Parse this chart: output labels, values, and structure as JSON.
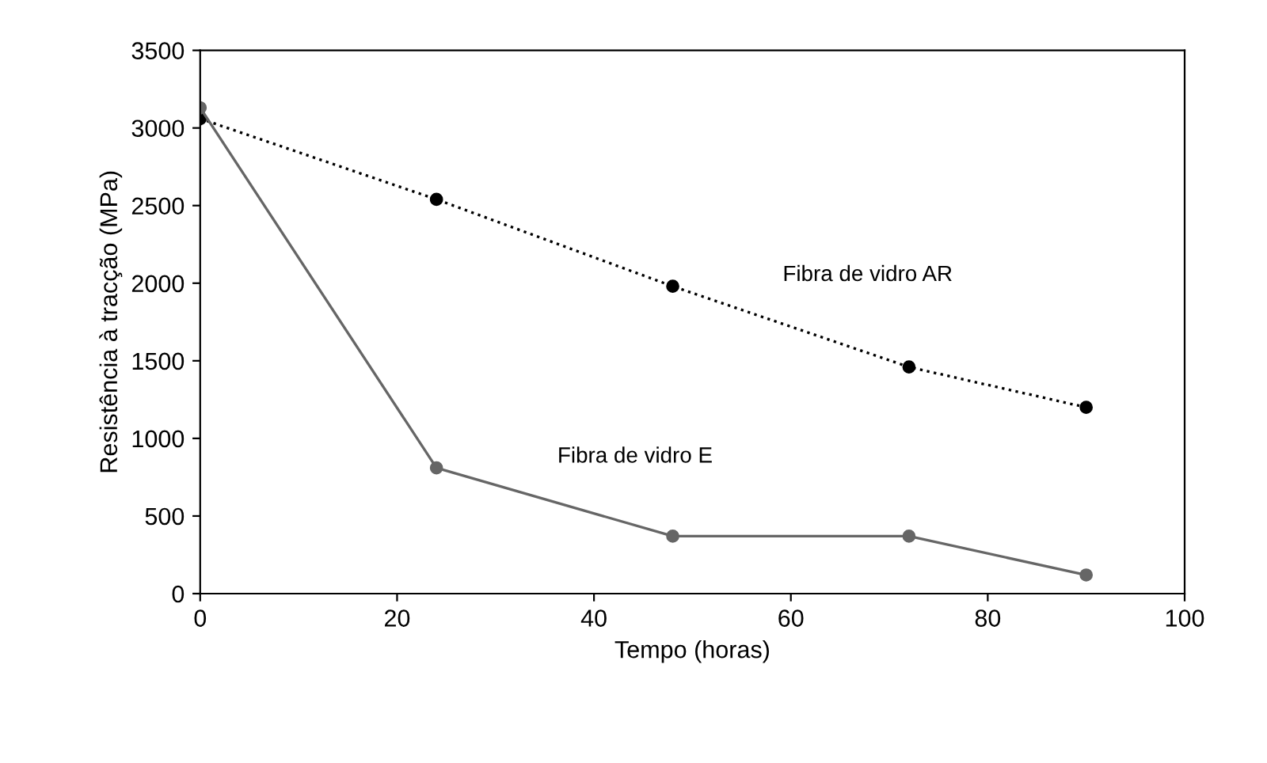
{
  "chart_data": {
    "type": "line",
    "xlabel": "Tempo (horas)",
    "ylabel": "Resistência à tracção (MPa)",
    "xlim": [
      0,
      100
    ],
    "xticks": [
      0,
      20,
      40,
      60,
      80,
      100
    ],
    "ylim": [
      0,
      3500
    ],
    "yticks": [
      0,
      500,
      1000,
      1500,
      2000,
      2500,
      3000,
      3500
    ],
    "grid": false,
    "legend": false,
    "marker": "circle",
    "series": [
      {
        "name": "Fibra de vidro AR",
        "color": "#000000",
        "line_style": "dotted",
        "x": [
          0,
          24,
          48,
          72,
          90
        ],
        "values": [
          3060,
          2540,
          1980,
          1460,
          1200
        ]
      },
      {
        "name": "Fibra de vidro E",
        "color": "#666666",
        "line_style": "solid",
        "x": [
          0,
          24,
          48,
          72,
          90
        ],
        "values": [
          3130,
          810,
          370,
          370,
          120
        ]
      }
    ]
  }
}
